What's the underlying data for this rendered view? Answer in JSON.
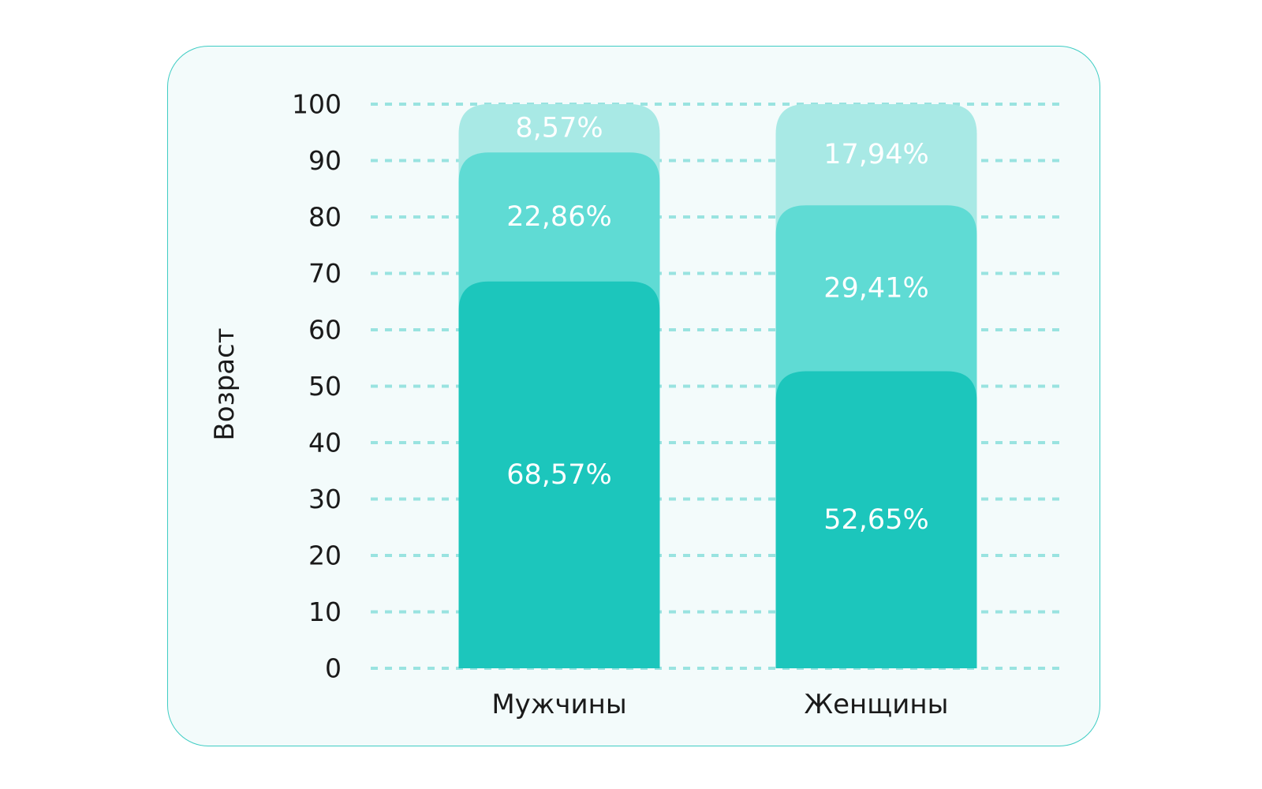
{
  "chart_data": {
    "type": "bar",
    "stacked": true,
    "ylabel": "Возраст",
    "xlabel": "",
    "ylim": [
      0,
      100
    ],
    "yticks": [
      "0",
      "10",
      "20",
      "30",
      "40",
      "50",
      "60",
      "70",
      "80",
      "90",
      "100"
    ],
    "grid": true,
    "categories": [
      "Мужчины",
      "Женщины"
    ],
    "series": [
      {
        "values": [
          68.57,
          52.65
        ],
        "labels": [
          "68,57%",
          "52,65%"
        ],
        "color": "#1cc6bc"
      },
      {
        "values": [
          22.86,
          29.41
        ],
        "labels": [
          "22,86%",
          "29,41%"
        ],
        "color": "#5fdbd4"
      },
      {
        "values": [
          8.57,
          17.94
        ],
        "labels": [
          "8,57%",
          "17,94%"
        ],
        "color": "#a8e9e5"
      }
    ]
  }
}
